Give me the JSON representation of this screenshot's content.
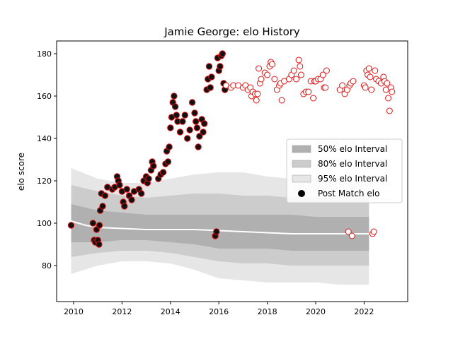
{
  "chart_data": {
    "type": "scatter",
    "title": "Jamie George: elo History",
    "xlabel": "",
    "ylabel": "elo score",
    "xlim": [
      2009.3,
      2023.8
    ],
    "ylim": [
      63,
      186
    ],
    "x_ticks": [
      2010,
      2012,
      2014,
      2016,
      2018,
      2020,
      2022
    ],
    "y_ticks": [
      80,
      100,
      120,
      140,
      160,
      180
    ],
    "x_tick_labels": [
      "2010",
      "2012",
      "2014",
      "2016",
      "2018",
      "2020",
      "2022"
    ],
    "y_tick_labels": [
      "80",
      "100",
      "120",
      "140",
      "160",
      "180"
    ],
    "grid": false,
    "legend": {
      "position": "center-right",
      "entries": [
        "50% elo Interval",
        "80% elo Interval",
        "95% elo Interval",
        "Post Match elo"
      ]
    },
    "intervals": [
      {
        "name": "95% elo Interval",
        "x": [
          2009.9,
          2011,
          2012,
          2013,
          2014,
          2015,
          2016,
          2017,
          2018,
          2019,
          2020,
          2021,
          2022.2
        ],
        "lower": [
          76,
          80,
          82,
          82,
          81,
          78,
          74,
          73,
          72,
          72,
          72,
          71,
          71
        ],
        "upper": [
          126,
          121,
          119,
          119,
          121,
          123,
          124,
          124,
          122,
          121,
          121,
          120,
          120
        ]
      },
      {
        "name": "80% elo Interval",
        "x": [
          2009.9,
          2011,
          2012,
          2013,
          2014,
          2015,
          2016,
          2017,
          2018,
          2019,
          2020,
          2021,
          2022.2
        ],
        "lower": [
          84,
          86,
          87,
          87,
          86,
          84,
          82,
          81,
          81,
          80,
          80,
          80,
          80
        ],
        "upper": [
          118,
          115,
          113,
          112,
          113,
          114,
          114,
          113,
          113,
          112,
          112,
          112,
          112
        ]
      },
      {
        "name": "50% elo Interval",
        "x": [
          2009.9,
          2011,
          2012,
          2013,
          2014,
          2015,
          2016,
          2017,
          2018,
          2019,
          2020,
          2021,
          2022.2
        ],
        "lower": [
          91,
          91,
          92,
          92,
          91,
          90,
          88,
          88,
          88,
          87,
          87,
          87,
          87
        ],
        "upper": [
          109,
          106,
          105,
          104,
          104,
          104,
          104,
          104,
          104,
          104,
          103,
          103,
          103
        ]
      }
    ],
    "expected_line": {
      "x": [
        2009.9,
        2010.5,
        2011,
        2012,
        2013,
        2014,
        2015,
        2016,
        2017,
        2018,
        2019,
        2020,
        2021,
        2022.2
      ],
      "y": [
        101,
        99,
        98,
        97.5,
        97,
        97,
        97,
        96.5,
        96,
        95.5,
        95,
        95,
        95,
        95
      ]
    },
    "post_match_elo": [
      [
        2009.9,
        99
      ],
      [
        2010.8,
        100
      ],
      [
        2010.85,
        92
      ],
      [
        2010.9,
        91
      ],
      [
        2010.95,
        97
      ],
      [
        2011.0,
        92
      ],
      [
        2011.05,
        90
      ],
      [
        2011.07,
        99
      ],
      [
        2011.1,
        106
      ],
      [
        2011.15,
        114
      ],
      [
        2011.2,
        108
      ],
      [
        2011.3,
        113
      ],
      [
        2011.4,
        117
      ],
      [
        2011.6,
        116
      ],
      [
        2011.7,
        117
      ],
      [
        2011.8,
        122
      ],
      [
        2011.85,
        120
      ],
      [
        2011.9,
        118
      ],
      [
        2012.0,
        115
      ],
      [
        2012.05,
        110
      ],
      [
        2012.1,
        108
      ],
      [
        2012.2,
        116
      ],
      [
        2012.3,
        113
      ],
      [
        2012.4,
        111
      ],
      [
        2012.5,
        115
      ],
      [
        2012.7,
        116
      ],
      [
        2012.8,
        114
      ],
      [
        2012.9,
        120
      ],
      [
        2013.0,
        122
      ],
      [
        2013.05,
        119
      ],
      [
        2013.1,
        121
      ],
      [
        2013.2,
        125
      ],
      [
        2013.25,
        129
      ],
      [
        2013.3,
        127
      ],
      [
        2013.5,
        121
      ],
      [
        2013.6,
        123
      ],
      [
        2013.7,
        124
      ],
      [
        2013.8,
        128
      ],
      [
        2013.85,
        134
      ],
      [
        2013.9,
        129
      ],
      [
        2013.95,
        136
      ],
      [
        2014.0,
        145
      ],
      [
        2014.05,
        150
      ],
      [
        2014.1,
        157
      ],
      [
        2014.15,
        160
      ],
      [
        2014.2,
        155
      ],
      [
        2014.25,
        151
      ],
      [
        2014.3,
        148
      ],
      [
        2014.4,
        143
      ],
      [
        2014.5,
        148
      ],
      [
        2014.6,
        151
      ],
      [
        2014.7,
        140
      ],
      [
        2014.8,
        144
      ],
      [
        2014.9,
        157
      ],
      [
        2015.0,
        152
      ],
      [
        2015.05,
        148
      ],
      [
        2015.1,
        145
      ],
      [
        2015.15,
        136
      ],
      [
        2015.2,
        141
      ],
      [
        2015.3,
        149
      ],
      [
        2015.35,
        143
      ],
      [
        2015.4,
        147
      ],
      [
        2015.5,
        163
      ],
      [
        2015.55,
        168
      ],
      [
        2015.6,
        174
      ],
      [
        2015.65,
        164
      ],
      [
        2015.7,
        169
      ],
      [
        2015.85,
        94
      ],
      [
        2015.9,
        96
      ],
      [
        2015.95,
        178
      ],
      [
        2016.0,
        172
      ],
      [
        2016.05,
        174
      ],
      [
        2016.1,
        179
      ],
      [
        2016.15,
        180
      ],
      [
        2016.2,
        166
      ],
      [
        2016.25,
        163
      ],
      [
        2016.3,
        165
      ],
      [
        2016.5,
        164
      ],
      [
        2016.6,
        165
      ],
      [
        2016.8,
        165
      ],
      [
        2017.0,
        164
      ],
      [
        2017.1,
        165
      ],
      [
        2017.2,
        163
      ],
      [
        2017.3,
        164
      ],
      [
        2017.35,
        160
      ],
      [
        2017.4,
        162
      ],
      [
        2017.5,
        161
      ],
      [
        2017.55,
        158
      ],
      [
        2017.6,
        161
      ],
      [
        2017.65,
        173
      ],
      [
        2017.7,
        166
      ],
      [
        2017.75,
        168
      ],
      [
        2017.9,
        171
      ],
      [
        2018.0,
        170
      ],
      [
        2018.1,
        174
      ],
      [
        2018.15,
        176
      ],
      [
        2018.2,
        175
      ],
      [
        2018.3,
        168
      ],
      [
        2018.4,
        163
      ],
      [
        2018.5,
        165
      ],
      [
        2018.55,
        166
      ],
      [
        2018.6,
        158
      ],
      [
        2018.7,
        167
      ],
      [
        2018.9,
        168
      ],
      [
        2019.0,
        170
      ],
      [
        2019.1,
        172
      ],
      [
        2019.2,
        168
      ],
      [
        2019.3,
        177
      ],
      [
        2019.35,
        174
      ],
      [
        2019.4,
        170
      ],
      [
        2019.5,
        161
      ],
      [
        2019.6,
        162
      ],
      [
        2019.7,
        162
      ],
      [
        2019.8,
        167
      ],
      [
        2019.9,
        159
      ],
      [
        2019.95,
        167
      ],
      [
        2020.0,
        167
      ],
      [
        2020.1,
        168
      ],
      [
        2020.2,
        168
      ],
      [
        2020.3,
        170
      ],
      [
        2020.35,
        164
      ],
      [
        2020.4,
        164
      ],
      [
        2020.45,
        172
      ],
      [
        2021.0,
        163
      ],
      [
        2021.1,
        165
      ],
      [
        2021.2,
        161
      ],
      [
        2021.3,
        163
      ],
      [
        2021.35,
        96
      ],
      [
        2021.4,
        165
      ],
      [
        2021.45,
        166
      ],
      [
        2021.5,
        94
      ],
      [
        2021.55,
        167
      ],
      [
        2022.0,
        165
      ],
      [
        2022.05,
        164
      ],
      [
        2022.1,
        172
      ],
      [
        2022.15,
        170
      ],
      [
        2022.2,
        173
      ],
      [
        2022.25,
        169
      ],
      [
        2022.3,
        163
      ],
      [
        2022.35,
        95
      ],
      [
        2022.4,
        96
      ],
      [
        2022.45,
        172
      ],
      [
        2022.5,
        168
      ],
      [
        2022.6,
        167
      ],
      [
        2022.7,
        166
      ],
      [
        2022.8,
        169
      ],
      [
        2022.85,
        167
      ],
      [
        2022.9,
        163
      ],
      [
        2022.95,
        166
      ],
      [
        2023.0,
        159
      ],
      [
        2023.05,
        153
      ],
      [
        2023.1,
        164
      ],
      [
        2023.15,
        162
      ]
    ]
  }
}
